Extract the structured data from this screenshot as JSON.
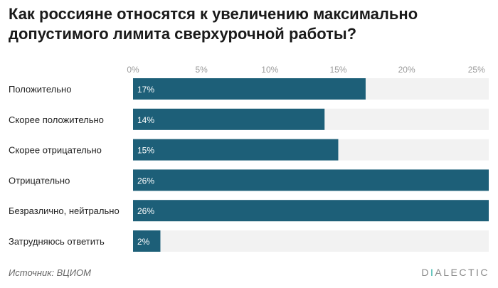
{
  "title": "Как россияне относятся к увеличению максимально допустимого лимита сверхурочной работы?",
  "source": "Источник: ВЦИОМ",
  "logo": {
    "first": "D",
    "accent": "I",
    "rest": "ALECTIC"
  },
  "colors": {
    "bar": "#1d5f78",
    "track": "#f2f2f2",
    "tick": "#9a9a9a",
    "logo_accent": "#2bb1a6"
  },
  "chart_data": {
    "type": "bar",
    "orientation": "horizontal",
    "title": "Как россияне относятся к увеличению максимально допустимого лимита сверхурочной работы?",
    "xlabel": "",
    "ylabel": "",
    "categories": [
      "Положительно",
      "Скорее положительно",
      "Скорее отрицательно",
      "Отрицательно",
      "Безразлично, нейтрально",
      "Затрудняюсь ответить"
    ],
    "values": [
      17,
      14,
      15,
      26,
      26,
      2
    ],
    "data_labels": [
      "17%",
      "14%",
      "15%",
      "26%",
      "26%",
      "2%"
    ],
    "xlim": [
      0,
      26
    ],
    "ticks": [
      0,
      5,
      10,
      15,
      20,
      25
    ],
    "tick_labels": [
      "0%",
      "5%",
      "10%",
      "15%",
      "20%",
      "25%"
    ],
    "grid": false,
    "legend": "none"
  }
}
